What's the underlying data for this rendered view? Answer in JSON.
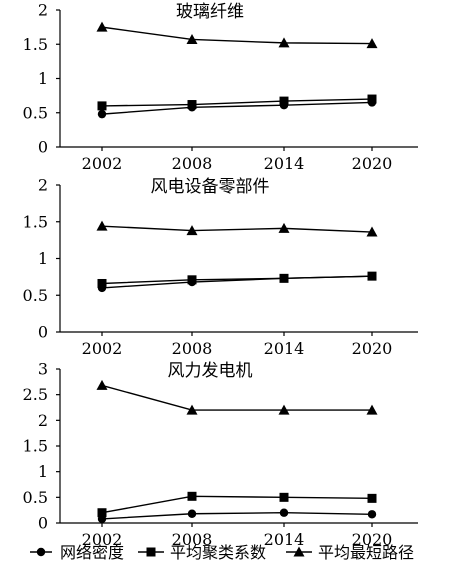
{
  "chart_data": [
    {
      "type": "line",
      "title": "玻璃纤维",
      "x": [
        "2002",
        "2008",
        "2014",
        "2020"
      ],
      "ylim": [
        0,
        2
      ],
      "yticks": [
        "0",
        "0.5",
        "1",
        "1.5",
        "2"
      ],
      "series": [
        {
          "name": "网络密度",
          "marker": "circle",
          "values": [
            0.48,
            0.58,
            0.61,
            0.65
          ]
        },
        {
          "name": "平均聚类系数",
          "marker": "square",
          "values": [
            0.6,
            0.62,
            0.67,
            0.7
          ]
        },
        {
          "name": "平均最短路径",
          "marker": "triangle",
          "values": [
            1.75,
            1.57,
            1.52,
            1.51
          ]
        }
      ]
    },
    {
      "type": "line",
      "title": "风电设备零部件",
      "x": [
        "2002",
        "2008",
        "2014",
        "2020"
      ],
      "ylim": [
        0,
        2
      ],
      "yticks": [
        "0",
        "0.5",
        "1",
        "1.5",
        "2"
      ],
      "series": [
        {
          "name": "网络密度",
          "marker": "circle",
          "values": [
            0.6,
            0.68,
            0.73,
            0.76
          ]
        },
        {
          "name": "平均聚类系数",
          "marker": "square",
          "values": [
            0.66,
            0.71,
            0.73,
            0.76
          ]
        },
        {
          "name": "平均最短路径",
          "marker": "triangle",
          "values": [
            1.44,
            1.38,
            1.41,
            1.36
          ]
        }
      ]
    },
    {
      "type": "line",
      "title": "风力发电机",
      "x": [
        "2002",
        "2008",
        "2014",
        "2020"
      ],
      "ylim": [
        0,
        3
      ],
      "yticks": [
        "0",
        "0.5",
        "1",
        "1.5",
        "2",
        "2.5",
        "3"
      ],
      "series": [
        {
          "name": "网络密度",
          "marker": "circle",
          "values": [
            0.08,
            0.18,
            0.2,
            0.17
          ]
        },
        {
          "name": "平均聚类系数",
          "marker": "square",
          "values": [
            0.2,
            0.52,
            0.5,
            0.48
          ]
        },
        {
          "name": "平均最短路径",
          "marker": "triangle",
          "values": [
            2.68,
            2.2,
            2.2,
            2.2
          ]
        }
      ]
    }
  ],
  "legend": {
    "position": "bottom",
    "items": [
      {
        "label": "网络密度",
        "marker": "circle"
      },
      {
        "label": "平均聚类系数",
        "marker": "square"
      },
      {
        "label": "平均最短路径",
        "marker": "triangle"
      }
    ]
  },
  "colors": {
    "ink": "#000000",
    "background": "#ffffff"
  }
}
